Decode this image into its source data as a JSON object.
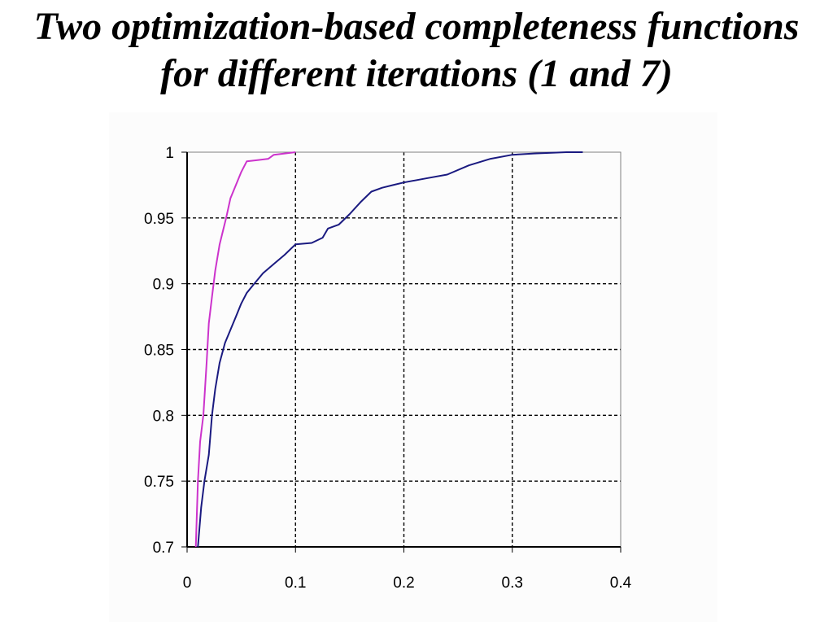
{
  "slide": {
    "title_line1": "Two optimization-based completeness functions",
    "title_line2": "for different iterations (1 and 7)"
  },
  "chart_data": {
    "type": "line",
    "title": "",
    "xlabel": "",
    "ylabel": "",
    "xlim": [
      0,
      0.4
    ],
    "ylim": [
      0.7,
      1
    ],
    "x_ticks": [
      0,
      0.1,
      0.2,
      0.3,
      0.4
    ],
    "x_tick_labels": [
      "0",
      "0.1",
      "0.2",
      "0.3",
      "0.4"
    ],
    "y_ticks": [
      0.7,
      0.75,
      0.8,
      0.85,
      0.9,
      0.95,
      1
    ],
    "y_tick_labels": [
      "0.7",
      "0.75",
      "0.8",
      "0.85",
      "0.9",
      "0.95",
      "1"
    ],
    "grid": true,
    "grid_style": "dashed",
    "legend": "none",
    "series": [
      {
        "color": "#cc33cc",
        "points": [
          [
            0.008,
            0.7
          ],
          [
            0.01,
            0.75
          ],
          [
            0.012,
            0.78
          ],
          [
            0.015,
            0.8
          ],
          [
            0.018,
            0.84
          ],
          [
            0.02,
            0.87
          ],
          [
            0.023,
            0.89
          ],
          [
            0.026,
            0.91
          ],
          [
            0.03,
            0.93
          ],
          [
            0.033,
            0.94
          ],
          [
            0.036,
            0.95
          ],
          [
            0.04,
            0.965
          ],
          [
            0.045,
            0.975
          ],
          [
            0.05,
            0.985
          ],
          [
            0.055,
            0.993
          ],
          [
            0.065,
            0.994
          ],
          [
            0.075,
            0.995
          ],
          [
            0.08,
            0.998
          ],
          [
            0.1,
            1
          ]
        ]
      },
      {
        "color": "#1a1a80",
        "points": [
          [
            0.01,
            0.7
          ],
          [
            0.013,
            0.73
          ],
          [
            0.016,
            0.75
          ],
          [
            0.02,
            0.77
          ],
          [
            0.023,
            0.8
          ],
          [
            0.026,
            0.82
          ],
          [
            0.03,
            0.84
          ],
          [
            0.035,
            0.855
          ],
          [
            0.04,
            0.865
          ],
          [
            0.045,
            0.875
          ],
          [
            0.05,
            0.885
          ],
          [
            0.055,
            0.893
          ],
          [
            0.06,
            0.898
          ],
          [
            0.07,
            0.908
          ],
          [
            0.08,
            0.915
          ],
          [
            0.09,
            0.922
          ],
          [
            0.1,
            0.93
          ],
          [
            0.115,
            0.931
          ],
          [
            0.125,
            0.935
          ],
          [
            0.13,
            0.942
          ],
          [
            0.14,
            0.945
          ],
          [
            0.15,
            0.953
          ],
          [
            0.16,
            0.962
          ],
          [
            0.17,
            0.97
          ],
          [
            0.18,
            0.973
          ],
          [
            0.19,
            0.975
          ],
          [
            0.2,
            0.977
          ],
          [
            0.22,
            0.98
          ],
          [
            0.24,
            0.983
          ],
          [
            0.26,
            0.99
          ],
          [
            0.28,
            0.995
          ],
          [
            0.3,
            0.998
          ],
          [
            0.32,
            0.999
          ],
          [
            0.35,
            1
          ],
          [
            0.365,
            1
          ]
        ]
      }
    ]
  }
}
